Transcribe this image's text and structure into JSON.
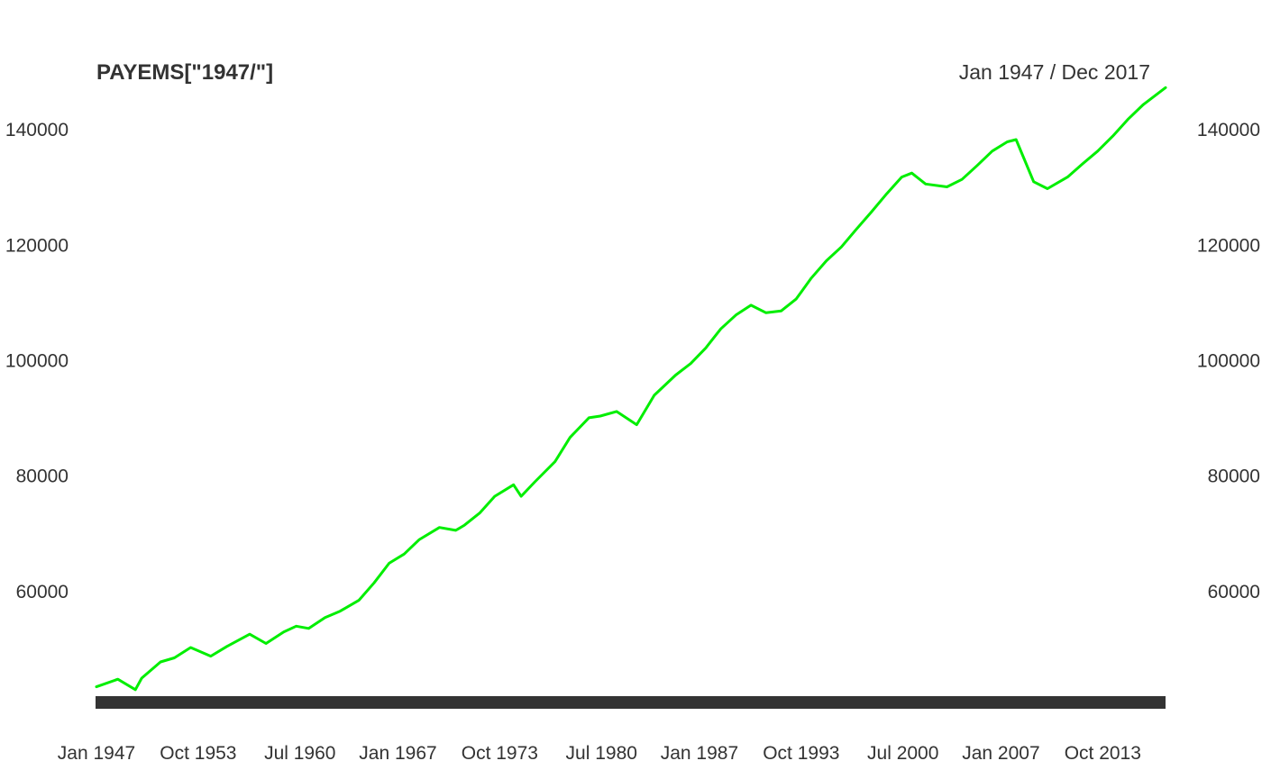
{
  "chart_data": {
    "type": "line",
    "title": "PAYEMS[\"1947/\"]",
    "date_range_label": "Jan 1947 / Dec 2017",
    "xlabel": "",
    "ylabel": "",
    "x_ticks": [
      "Jan 1947",
      "Oct 1953",
      "Jul 1960",
      "Jan 1967",
      "Oct 1973",
      "Jul 1980",
      "Jan 1987",
      "Oct 1993",
      "Jul 2000",
      "Jan 2007",
      "Oct 2013"
    ],
    "y_ticks": [
      60000,
      80000,
      100000,
      120000,
      140000
    ],
    "y_ticks_text": [
      "60000",
      "80000",
      "100000",
      "120000",
      "140000"
    ],
    "ylim": [
      40000,
      150000
    ],
    "grid": false,
    "line_color": "#00ee00",
    "axis_bar_color": "#333333",
    "series": [
      {
        "x": [
          "1947-01",
          "1948-06",
          "1949-08",
          "1950-01",
          "1951-04",
          "1952-03",
          "1953-04",
          "1954-08",
          "1955-09",
          "1957-03",
          "1958-04",
          "1959-06",
          "1960-04",
          "1961-02",
          "1962-03",
          "1963-03",
          "1964-06",
          "1965-06",
          "1966-06",
          "1967-06",
          "1968-06",
          "1969-10",
          "1970-11",
          "1971-06",
          "1972-06",
          "1973-06",
          "1974-09",
          "1975-03",
          "1976-02",
          "1977-06",
          "1978-06",
          "1979-09",
          "1980-06",
          "1981-07",
          "1982-11",
          "1984-01",
          "1985-06",
          "1986-06",
          "1987-06",
          "1988-06",
          "1989-06",
          "1990-06",
          "1991-06",
          "1992-06",
          "1993-06",
          "1994-06",
          "1995-06",
          "1996-06",
          "1997-06",
          "1998-06",
          "1999-06",
          "2000-06",
          "2001-02",
          "2002-01",
          "2003-06",
          "2004-06",
          "2005-06",
          "2006-06",
          "2007-06",
          "2008-01",
          "2009-03",
          "2010-02",
          "2011-06",
          "2012-06",
          "2013-06",
          "2014-06",
          "2015-06",
          "2016-06",
          "2017-12"
        ],
        "values": [
          43500,
          44800,
          43000,
          45000,
          47800,
          48500,
          50300,
          48800,
          50500,
          52600,
          51000,
          53000,
          54000,
          53600,
          55500,
          56600,
          58500,
          61500,
          64900,
          66500,
          69000,
          71100,
          70600,
          71500,
          73600,
          76500,
          78500,
          76500,
          79000,
          82500,
          86700,
          90100,
          90400,
          91200,
          88900,
          94000,
          97500,
          99500,
          102200,
          105500,
          107900,
          109600,
          108300,
          108600,
          110700,
          114300,
          117300,
          119700,
          122800,
          125800,
          128900,
          131800,
          132500,
          130600,
          130100,
          131400,
          133800,
          136300,
          137900,
          138300,
          131000,
          129800,
          131800,
          134100,
          136300,
          138900,
          141800,
          144300,
          147300
        ]
      }
    ]
  }
}
